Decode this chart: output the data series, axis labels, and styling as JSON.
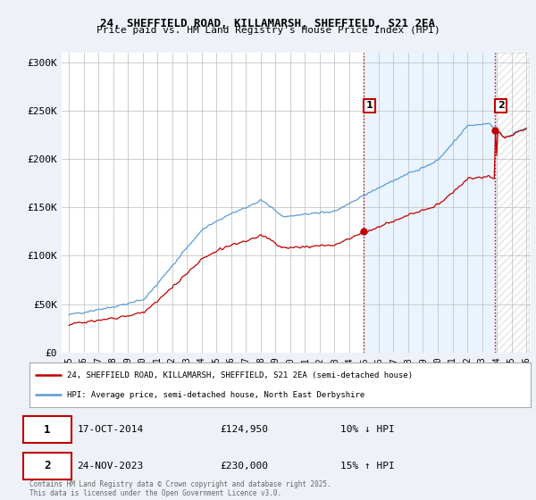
{
  "title_line1": "24, SHEFFIELD ROAD, KILLAMARSH, SHEFFIELD, S21 2EA",
  "title_line2": "Price paid vs. HM Land Registry's House Price Index (HPI)",
  "ylim": [
    0,
    310000
  ],
  "yticks": [
    0,
    50000,
    100000,
    150000,
    200000,
    250000,
    300000
  ],
  "ytick_labels": [
    "£0",
    "£50K",
    "£100K",
    "£150K",
    "£200K",
    "£250K",
    "£300K"
  ],
  "hpi_color": "#5b9bd5",
  "price_color": "#c00000",
  "vline_color": "#c00000",
  "purchase1_year": 2015.0,
  "purchase1_price": 124950,
  "purchase2_year": 2023.9,
  "purchase2_price": 230000,
  "legend_line1": "24, SHEFFIELD ROAD, KILLAMARSH, SHEFFIELD, S21 2EA (semi-detached house)",
  "legend_line2": "HPI: Average price, semi-detached house, North East Derbyshire",
  "footer": "Contains HM Land Registry data © Crown copyright and database right 2025.\nThis data is licensed under the Open Government Licence v3.0.",
  "background_color": "#eef2f8",
  "plot_bg_color": "#ffffff",
  "shaded_bg_color": "#ddeeff",
  "grid_color": "#bbbbbb",
  "annotation_box_color": "#c00000",
  "hatch_color": "#cccccc"
}
